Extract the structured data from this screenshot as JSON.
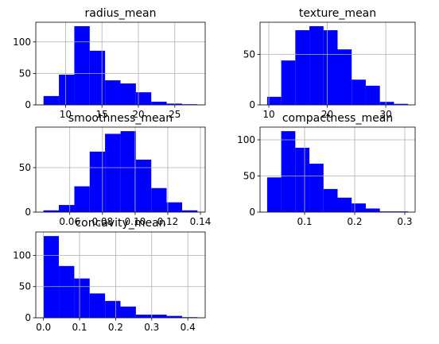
{
  "chart_data": [
    {
      "type": "histogram",
      "title": "radius_mean",
      "color": "blue",
      "grid": true,
      "bins": [
        6.981,
        9.094,
        11.207,
        13.32,
        15.433,
        17.546,
        19.658,
        21.771,
        23.884,
        25.997,
        28.11
      ],
      "counts": [
        14,
        48,
        125,
        86,
        39,
        34,
        20,
        5,
        2,
        1
      ],
      "xlim": [
        5.92,
        29.17
      ],
      "xticks": [
        10,
        15,
        20,
        25
      ],
      "ylim": [
        0,
        131.25
      ],
      "yticks": [
        0,
        50,
        100
      ]
    },
    {
      "type": "histogram",
      "title": "texture_mean",
      "color": "blue",
      "grid": true,
      "bins": [
        9.71,
        12.12,
        14.53,
        16.94,
        19.35,
        21.76,
        24.17,
        26.58,
        28.99,
        31.4,
        33.81
      ],
      "counts": [
        8,
        44,
        74,
        78,
        74,
        55,
        25,
        19,
        3,
        1
      ],
      "xlim": [
        8.5,
        35.02
      ],
      "xticks": [
        10,
        20,
        30
      ],
      "ylim": [
        0,
        81.9
      ],
      "yticks": [
        0,
        50
      ]
    },
    {
      "type": "histogram",
      "title": "smoothness_mean",
      "color": "blue",
      "grid": true,
      "bins": [
        0.0439,
        0.0533,
        0.0628,
        0.0722,
        0.0816,
        0.0911,
        0.1005,
        0.1099,
        0.1193,
        0.1288,
        0.1382
      ],
      "counts": [
        2,
        8,
        29,
        68,
        88,
        91,
        59,
        27,
        11,
        2
      ],
      "xlim": [
        0.0392,
        0.1429
      ],
      "xticks": [
        0.06,
        0.08,
        {
          "value": 0.1,
          "label": "0.10"
        },
        0.12,
        0.14
      ],
      "ylim": [
        0,
        95.55
      ],
      "yticks": [
        0,
        50
      ]
    },
    {
      "type": "histogram",
      "title": "compactness_mean",
      "color": "blue",
      "grid": true,
      "bins": [
        0.0252,
        0.0533,
        0.0815,
        0.1096,
        0.1378,
        0.1659,
        0.194,
        0.2222,
        0.2503,
        0.2785,
        0.3066
      ],
      "counts": [
        48,
        112,
        89,
        67,
        32,
        20,
        12,
        5,
        1,
        1
      ],
      "xlim": [
        0.0111,
        0.3207
      ],
      "xticks": [
        0.1,
        0.2,
        0.3
      ],
      "ylim": [
        0,
        117.6
      ],
      "yticks": [
        0,
        50,
        100
      ]
    },
    {
      "type": "histogram",
      "title": "concavity_mean",
      "color": "blue",
      "grid": true,
      "bins": [
        0,
        0.0427,
        0.0854,
        0.128,
        0.1707,
        0.2134,
        0.2561,
        0.2988,
        0.3414,
        0.3841,
        0.4268
      ],
      "counts": [
        131,
        83,
        63,
        39,
        27,
        18,
        5,
        5,
        3,
        1
      ],
      "xlim": [
        -0.0213,
        0.4481
      ],
      "xticks": [
        {
          "value": 0,
          "label": "0.0"
        },
        0.1,
        0.2,
        0.3,
        0.4
      ],
      "ylim": [
        0,
        137.55
      ],
      "yticks": [
        0,
        50,
        100
      ]
    }
  ]
}
